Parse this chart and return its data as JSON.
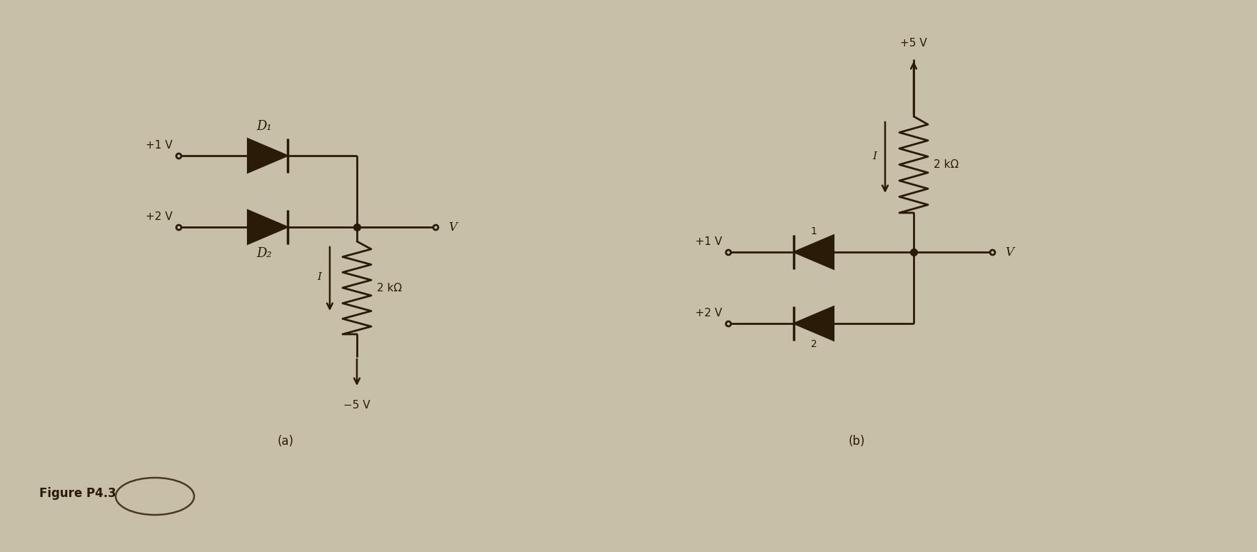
{
  "bg_color": "#c8bfa8",
  "line_color": "#2a1a08",
  "fig_width": 17.61,
  "fig_height": 7.73,
  "dpi": 100,
  "circuit_a": {
    "label": "(a)",
    "v1_label": "+1 V",
    "v2_label": "+2 V",
    "d1_label": "D₁",
    "d2_label": "D₂",
    "r_label": "2 kΩ",
    "i_label": "I",
    "v_out_label": "V",
    "v_neg_label": "−5 V"
  },
  "circuit_b": {
    "label": "(b)",
    "v1_label": "+1 V",
    "v2_label": "+2 V",
    "d1_num": "1",
    "d2_num": "2",
    "r_label": "2 kΩ",
    "i_label": "I",
    "v_out_label": "V",
    "v_pos_label": "+5 V"
  },
  "figure_label": "Figure P4.3"
}
